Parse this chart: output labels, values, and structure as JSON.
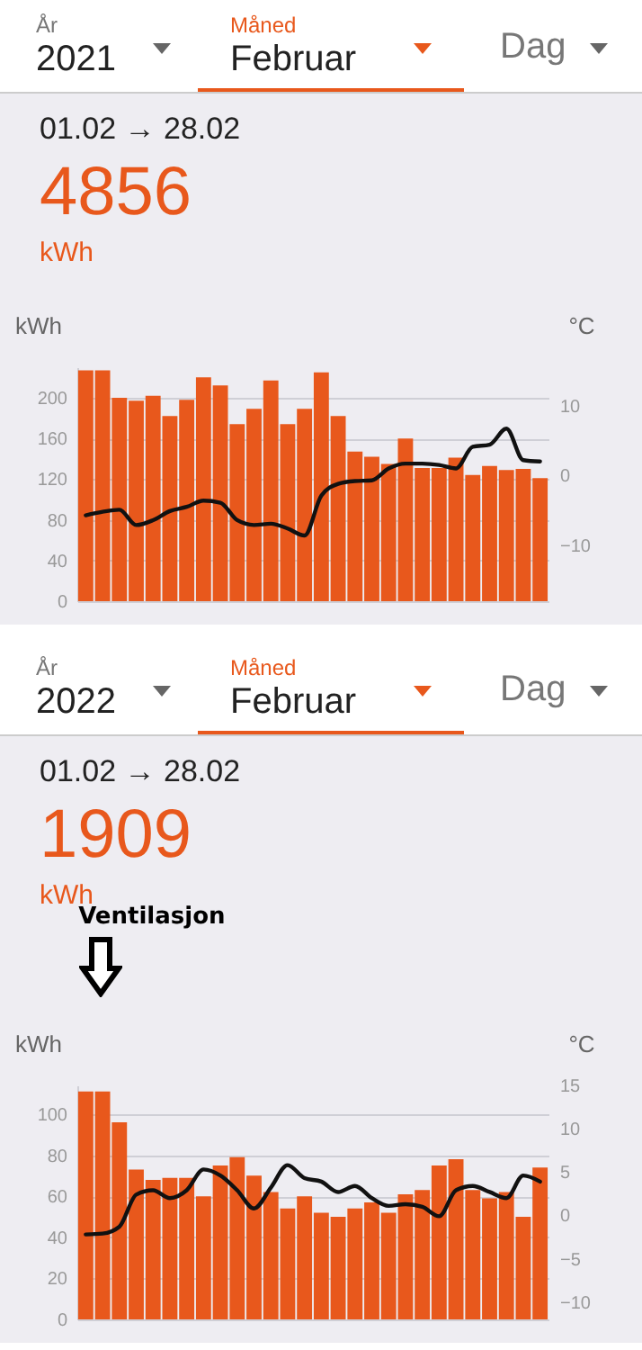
{
  "chart_data": [
    {
      "type": "bar",
      "ylabel": "kWh",
      "y2label": "°C",
      "annotations": [
        "År",
        "2021",
        "Måned",
        "Februar",
        "Dag",
        "01.02 → 28.02",
        "4856",
        "kWh"
      ],
      "categories": [
        null,
        null,
        null,
        null,
        null,
        null,
        null,
        null,
        null,
        null,
        null,
        null,
        null,
        null,
        null,
        null,
        null,
        null,
        null,
        null,
        null,
        null,
        null,
        null,
        null,
        null,
        null,
        null
      ],
      "series": [
        {
          "color": "#e8581c",
          "values": [
            227,
            227,
            200,
            197,
            202,
            182,
            198,
            220,
            212,
            174,
            189,
            217,
            174,
            189,
            225,
            182,
            147,
            142,
            135,
            160,
            131,
            131,
            141,
            124,
            133,
            129,
            130,
            121
          ]
        },
        {
          "type": "line",
          "axis": "y2",
          "color": "#111111",
          "values": [
            -5.7,
            -5.2,
            -4.9,
            -7.1,
            -6.4,
            -5.1,
            -4.5,
            -3.6,
            -3.9,
            -6.4,
            -7.1,
            -6.9,
            -7.6,
            -8.6,
            -2.9,
            -1.2,
            -0.8,
            -0.7,
            1.0,
            1.7,
            1.7,
            1.5,
            1.0,
            4.1,
            4.4,
            6.7,
            2.2,
            2.0
          ]
        }
      ],
      "ylim": [
        0,
        230
      ],
      "yticks": [
        0,
        40,
        80,
        120,
        160,
        200
      ],
      "y2lim": [
        -18,
        15.5
      ],
      "y2ticks": [
        -10,
        0,
        10
      ],
      "grid": "y"
    },
    {
      "type": "bar",
      "ylabel": "kWh",
      "y2label": "°C",
      "annotations": [
        "År",
        "2022",
        "Måned",
        "Februar",
        "Dag",
        "01.02 → 28.02",
        "1909",
        "kWh",
        "Ventilasjon"
      ],
      "categories": [
        null,
        null,
        null,
        null,
        null,
        null,
        null,
        null,
        null,
        null,
        null,
        null,
        null,
        null,
        null,
        null,
        null,
        null,
        null,
        null,
        null,
        null,
        null,
        null,
        null,
        null,
        null,
        null
      ],
      "series": [
        {
          "color": "#e8581c",
          "values": [
            111,
            111,
            96,
            73,
            68,
            69,
            69,
            60,
            75,
            79,
            70,
            62,
            54,
            60,
            52,
            50,
            54,
            57,
            52,
            61,
            63,
            75,
            78,
            63,
            59,
            62,
            50,
            74
          ]
        },
        {
          "type": "line",
          "axis": "y2",
          "color": "#111111",
          "values": [
            -2.2,
            -2.1,
            -1.3,
            2.4,
            2.9,
            2.0,
            2.9,
            5.3,
            4.6,
            2.9,
            0.8,
            3.2,
            5.8,
            4.3,
            3.9,
            2.7,
            3.4,
            2.0,
            1.1,
            1.3,
            1.0,
            -0.1,
            2.9,
            3.4,
            2.7,
            2.0,
            4.6,
            3.9
          ]
        }
      ],
      "ylim": [
        0,
        114
      ],
      "yticks": [
        0,
        20,
        40,
        60,
        80,
        100
      ],
      "y2lim": [
        -12,
        15
      ],
      "y2ticks": [
        -10,
        -5,
        0,
        5,
        10,
        15
      ],
      "grid": "y"
    }
  ]
}
